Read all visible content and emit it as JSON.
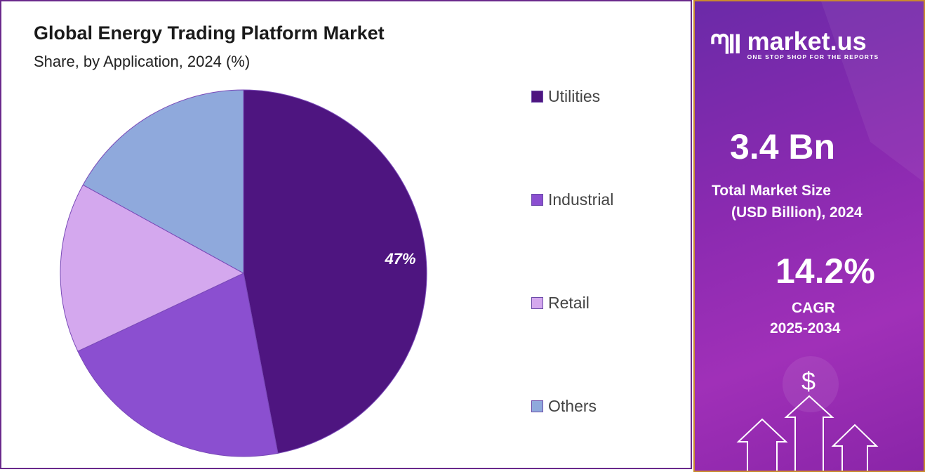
{
  "chart_data": {
    "type": "pie",
    "title": "Global Energy Trading Platform Market",
    "subtitle": "Share, by Application, 2024 (%)",
    "categories": [
      "Utilities",
      "Industrial",
      "Retail",
      "Others"
    ],
    "values": [
      47,
      21,
      15,
      17
    ],
    "data_labels": [
      "47%",
      "",
      "",
      ""
    ],
    "colors": [
      "#4e1580",
      "#8b4fd0",
      "#d4a8ee",
      "#8fa9dc"
    ],
    "legend_position": "right"
  },
  "sidebar": {
    "brand": "market.us",
    "tagline": "ONE STOP SHOP FOR THE REPORTS",
    "market_size": "3.4 Bn",
    "market_size_label_1": "Total Market Size",
    "market_size_label_2": "(USD Billion), 2024",
    "cagr": "14.2%",
    "cagr_label_1": "CAGR",
    "cagr_label_2": "2025-2034",
    "dollar_symbol": "$"
  }
}
